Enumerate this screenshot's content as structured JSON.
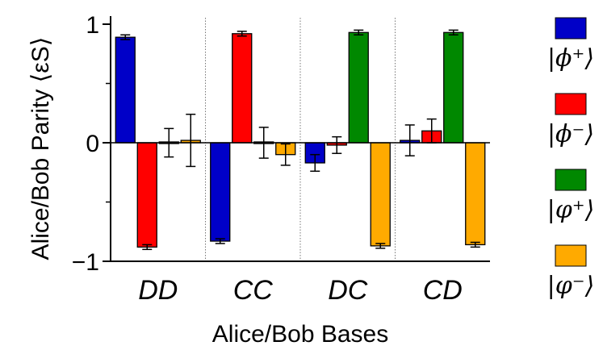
{
  "chart_data": {
    "type": "bar",
    "xlabel": "Alice/Bob Bases",
    "ylabel": "Alice/Bob Parity ⟨εS⟩",
    "ylim": [
      -1,
      1
    ],
    "yticks": [
      {
        "value": 1,
        "label": "1"
      },
      {
        "value": 0,
        "label": "0"
      },
      {
        "value": -1,
        "label": "−1"
      }
    ],
    "categories": [
      "DD",
      "CC",
      "DC",
      "CD"
    ],
    "grid": false,
    "legend_position": "right",
    "series": [
      {
        "name": "|ϕ⁺⟩",
        "color": "#0000c8",
        "values": [
          0.89,
          -0.83,
          -0.17,
          0.02
        ],
        "errors": [
          0.02,
          0.02,
          0.07,
          0.13
        ]
      },
      {
        "name": "|ϕ⁻⟩",
        "color": "#ff0000",
        "values": [
          -0.88,
          0.92,
          -0.02,
          0.1
        ],
        "errors": [
          0.02,
          0.02,
          0.07,
          0.1
        ]
      },
      {
        "name": "|φ⁺⟩",
        "color": "#008800",
        "values": [
          0.0,
          0.0,
          0.93,
          0.93
        ],
        "errors": [
          0.12,
          0.13,
          0.02,
          0.02
        ]
      },
      {
        "name": "|φ⁻⟩",
        "color": "#ffaa00",
        "values": [
          0.02,
          -0.1,
          -0.87,
          -0.86
        ],
        "errors": [
          0.22,
          0.09,
          0.02,
          0.02
        ]
      }
    ]
  }
}
